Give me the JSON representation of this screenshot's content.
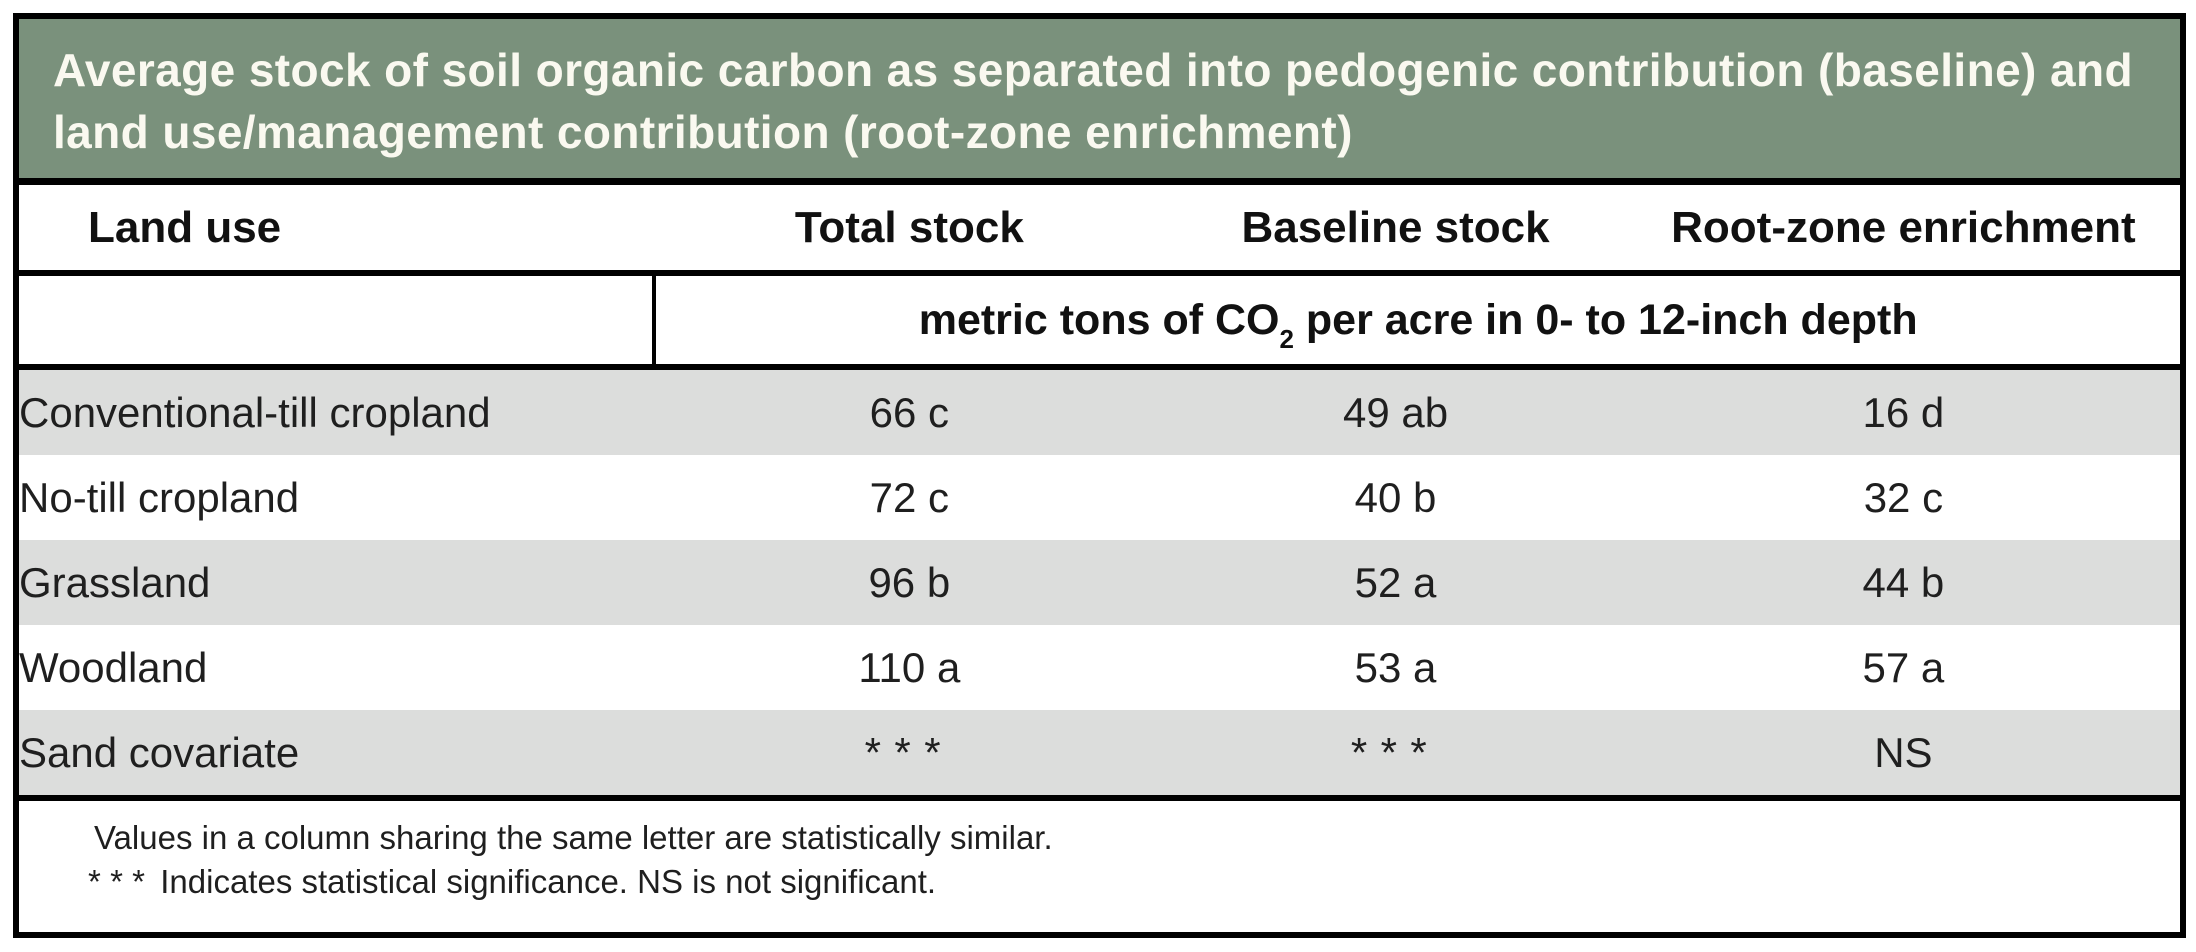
{
  "chart_data": {
    "type": "table",
    "title": "Average stock of soil organic carbon as separated into pedogenic contribution (baseline) and land use/management contribution (root-zone enrichment)",
    "columns": [
      "Land use",
      "Total stock",
      "Baseline stock",
      "Root-zone enrichment"
    ],
    "unit_header": {
      "prefix": "metric tons of CO",
      "subscript": "2",
      "suffix": " per acre in 0- to 12-inch depth"
    },
    "rows": [
      {
        "land_use": "Conventional-till cropland",
        "total_stock": "66 c",
        "baseline_stock": "49 ab",
        "root_zone_enrichment": "16 d"
      },
      {
        "land_use": "No-till cropland",
        "total_stock": "72 c",
        "baseline_stock": "40 b",
        "root_zone_enrichment": "32 c"
      },
      {
        "land_use": "Grassland",
        "total_stock": "96 b",
        "baseline_stock": "52 a",
        "root_zone_enrichment": "44 b"
      },
      {
        "land_use": "Woodland",
        "total_stock": "110 a",
        "baseline_stock": "53 a",
        "root_zone_enrichment": "57 a"
      },
      {
        "land_use": "Sand covariate",
        "total_stock": "***",
        "baseline_stock": "***",
        "root_zone_enrichment": "NS"
      }
    ],
    "notes": [
      {
        "marker": "",
        "text": "Values in a column sharing the same letter are statistically similar."
      },
      {
        "marker": "***",
        "text": "Indicates statistical significance. NS is not significant."
      }
    ],
    "layout_hints": {
      "row_striping": "odd rows gray",
      "unit_header_spans": "columns 2-4"
    }
  },
  "colors": {
    "title_bar_green": "#7a917c",
    "title_text": "#faf9f0",
    "stripe_gray": "#dcdddc",
    "border_black": "#000000"
  }
}
